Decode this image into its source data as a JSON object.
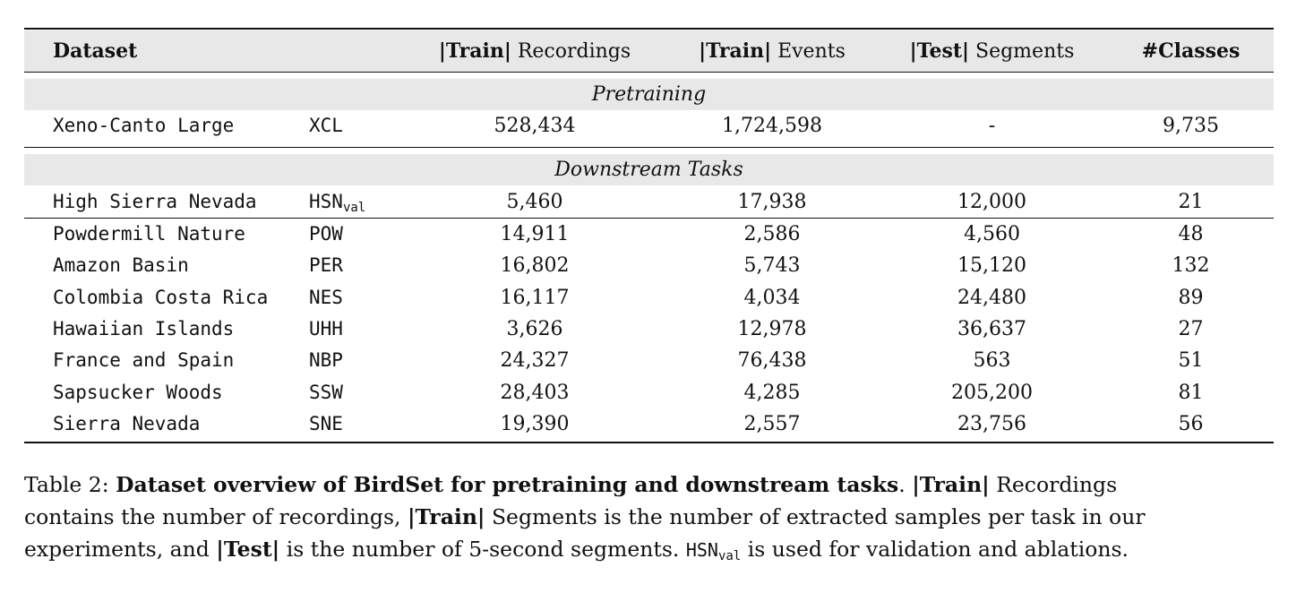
{
  "table": {
    "header": {
      "dataset": "Dataset",
      "train_rec_bold": "|Train|",
      "train_rec_rest": " Recordings",
      "train_ev_bold": "|Train|",
      "train_ev_rest": " Events",
      "test_seg_bold": "|Test|",
      "test_seg_rest": " Segments",
      "classes": "#Classes"
    },
    "pretraining_label": "Pretraining",
    "downstream_label": "Downstream Tasks",
    "pretraining_rows": [
      {
        "name": "Xeno-Canto Large",
        "abbr": "XCL",
        "recordings": "528,434",
        "events": "1,724,598",
        "segments": "-",
        "classes": "9,735"
      }
    ],
    "hsn_row": {
      "name": "High Sierra Nevada",
      "abbr": "HSN",
      "abbr_sub": "val",
      "recordings": "5,460",
      "events": "17,938",
      "segments": "12,000",
      "classes": "21"
    },
    "downstream_rows": [
      {
        "name": "Powdermill Nature",
        "abbr": "POW",
        "recordings": "14,911",
        "events": "2,586",
        "segments": "4,560",
        "classes": "48"
      },
      {
        "name": "Amazon Basin",
        "abbr": "PER",
        "recordings": "16,802",
        "events": "5,743",
        "segments": "15,120",
        "classes": "132"
      },
      {
        "name": "Colombia Costa Rica",
        "abbr": "NES",
        "recordings": "16,117",
        "events": "4,034",
        "segments": "24,480",
        "classes": "89"
      },
      {
        "name": "Hawaiian Islands",
        "abbr": "UHH",
        "recordings": "3,626",
        "events": "12,978",
        "segments": "36,637",
        "classes": "27"
      },
      {
        "name": "France and Spain",
        "abbr": "NBP",
        "recordings": "24,327",
        "events": "76,438",
        "segments": "563",
        "classes": "51"
      },
      {
        "name": "Sapsucker Woods",
        "abbr": "SSW",
        "recordings": "28,403",
        "events": "4,285",
        "segments": "205,200",
        "classes": "81"
      },
      {
        "name": "Sierra Nevada",
        "abbr": "SNE",
        "recordings": "19,390",
        "events": "2,557",
        "segments": "23,756",
        "classes": "56"
      }
    ]
  },
  "caption": {
    "prefix": "Table 2: ",
    "title_bold": "Dataset overview of BirdSet for pretraining and downstream tasks",
    "after_title": ". ",
    "train1_bold": "|Train|",
    "line1_end": " Recordings",
    "line2_start": "contains the number of recordings, ",
    "train2_bold": "|Train|",
    "line2_end": " Segments is the number of extracted samples per task in our",
    "line3_start": "experiments, and ",
    "test_bold": "|Test|",
    "line3_mid": " is the number of 5-second segments. ",
    "hsn": "HSN",
    "hsn_sub": "val",
    "line3_end": " is used for validation and ablations."
  }
}
